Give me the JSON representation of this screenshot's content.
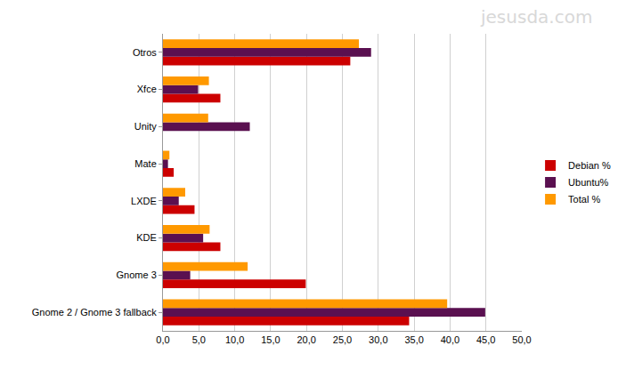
{
  "chart_data": {
    "type": "bar",
    "orientation": "horizontal",
    "categories": [
      "Gnome 2 / Gnome 3 fallback",
      "Gnome 3",
      "KDE",
      "LXDE",
      "Mate",
      "Unity",
      "Xfce",
      "Otros"
    ],
    "series": [
      {
        "name": "Debian %",
        "color": "#cc0000",
        "values": [
          34.3,
          19.9,
          8.0,
          4.4,
          1.5,
          0,
          8.0,
          26.1
        ]
      },
      {
        "name": "Ubuntu%",
        "color": "#5a1050",
        "values": [
          44.9,
          3.8,
          5.6,
          2.2,
          0.7,
          12.1,
          4.9,
          29.0
        ]
      },
      {
        "name": "Total %",
        "color": "#ff9900",
        "values": [
          39.6,
          11.8,
          6.5,
          3.1,
          0.9,
          6.3,
          6.4,
          27.3
        ]
      }
    ],
    "xlim": [
      0,
      50
    ],
    "xticks": [
      {
        "value": 0,
        "label": "0,0"
      },
      {
        "value": 5,
        "label": "5,0"
      },
      {
        "value": 10,
        "label": "10,0"
      },
      {
        "value": 15,
        "label": "15,0"
      },
      {
        "value": 20,
        "label": "20,0"
      },
      {
        "value": 25,
        "label": "25,0"
      },
      {
        "value": 30,
        "label": "30,0"
      },
      {
        "value": 35,
        "label": "35,0"
      },
      {
        "value": 40,
        "label": "40,0"
      },
      {
        "value": 45,
        "label": "45,0"
      },
      {
        "value": 50,
        "label": "50,0"
      }
    ],
    "grid": true,
    "legend": "right",
    "annotations": [
      "jesusda.com"
    ]
  }
}
